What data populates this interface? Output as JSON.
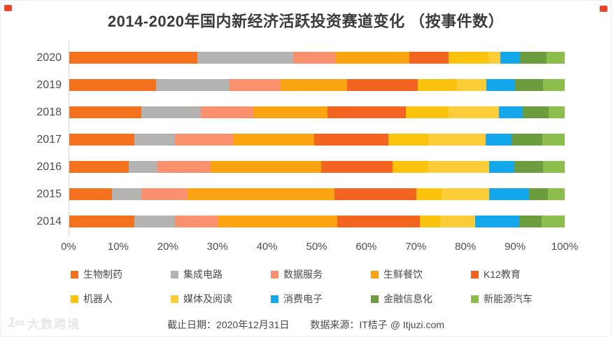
{
  "title": "2014-2020年国内新经济活跃投资赛道变化 （按事件数）",
  "chart_data": {
    "type": "bar",
    "variant": "horizontal-stacked-percent",
    "title": "2014-2020年国内新经济活跃投资赛道变化 （按事件数）",
    "categories": [
      "2020",
      "2019",
      "2018",
      "2017",
      "2016",
      "2015",
      "2014"
    ],
    "series": [
      {
        "name": "生物制药",
        "color": "#f4711d",
        "values": [
          26.0,
          17.6,
          14.7,
          13.2,
          12.1,
          8.8,
          13.3
        ]
      },
      {
        "name": "集成电路",
        "color": "#b5b3b1",
        "values": [
          19.3,
          14.9,
          11.9,
          8.2,
          5.8,
          5.9,
          8.1
        ]
      },
      {
        "name": "数据服务",
        "color": "#f9916f",
        "values": [
          8.7,
          10.3,
          10.6,
          11.7,
          10.8,
          9.3,
          8.8
        ]
      },
      {
        "name": "生鲜餐饮",
        "color": "#fba411",
        "values": [
          14.8,
          13.4,
          15.0,
          16.4,
          22.2,
          29.7,
          24.0
        ]
      },
      {
        "name": "K12教育",
        "color": "#f2641f",
        "values": [
          7.9,
          14.2,
          15.8,
          14.9,
          14.4,
          16.5,
          16.6
        ]
      },
      {
        "name": "机器人",
        "color": "#fbc30e",
        "values": [
          8.0,
          7.9,
          8.6,
          8.1,
          7.1,
          5.1,
          4.1
        ]
      },
      {
        "name": "媒体及阅读",
        "color": "#fccd39",
        "values": [
          2.4,
          5.9,
          10.2,
          11.6,
          12.4,
          9.5,
          7.0
        ]
      },
      {
        "name": "消费电子",
        "color": "#14a7ec",
        "values": [
          4.0,
          5.8,
          4.7,
          5.2,
          5.0,
          8.1,
          9.0
        ]
      },
      {
        "name": "金融信息化",
        "color": "#6b9c3d",
        "values": [
          5.3,
          5.6,
          5.3,
          6.2,
          5.8,
          3.8,
          4.5
        ]
      },
      {
        "name": "新能源汽车",
        "color": "#8cbd4d",
        "values": [
          3.7,
          4.4,
          3.2,
          4.5,
          4.4,
          3.4,
          4.6
        ]
      }
    ],
    "x_ticks": [
      "0%",
      "10%",
      "20%",
      "30%",
      "40%",
      "50%",
      "60%",
      "70%",
      "80%",
      "90%",
      "100%"
    ],
    "xlim": [
      0,
      100
    ],
    "ylabel": "",
    "xlabel": "",
    "grid": false,
    "legend_position": "bottom"
  },
  "footer": {
    "deadline": "截止日期：2020年12月31日",
    "source": "数据来源：IT桔子 @ Itjuzi.com"
  },
  "watermark": {
    "logo_glyph": "1∞",
    "text": "大数跨境"
  },
  "decor": {
    "corner_mark_color": "#e8452b"
  }
}
